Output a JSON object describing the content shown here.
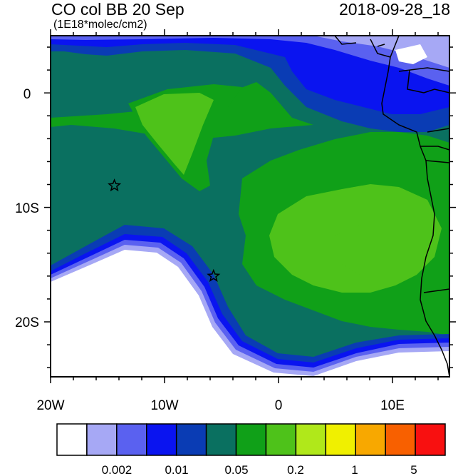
{
  "title": "CO col BB 20 Sep",
  "units": "(1E18*molec/cm2)",
  "datetime": "2018-09-28_18",
  "y_ticks": [
    "0",
    "10S",
    "20S"
  ],
  "x_ticks": [
    "20W",
    "10W",
    "0",
    "10E"
  ],
  "colorbar": {
    "colors": [
      "#ffffff",
      "#a6a8f5",
      "#5a61f0",
      "#0a14f0",
      "#0a3cb4",
      "#0a7060",
      "#10a018",
      "#4ec21a",
      "#b0e81a",
      "#f0f000",
      "#f8a800",
      "#f86000",
      "#f81010"
    ],
    "labels": [
      "0.002",
      "0.01",
      "0.05",
      "0.2",
      "1",
      "5"
    ]
  },
  "markers": [
    {
      "name": "star-1",
      "lon": -14.4,
      "lat": -8.1
    },
    {
      "name": "star-2",
      "lon": -5.7,
      "lat": -16.0
    }
  ],
  "map_extent": {
    "lon": [
      -20,
      15
    ],
    "lat": [
      -24.5,
      5
    ]
  }
}
